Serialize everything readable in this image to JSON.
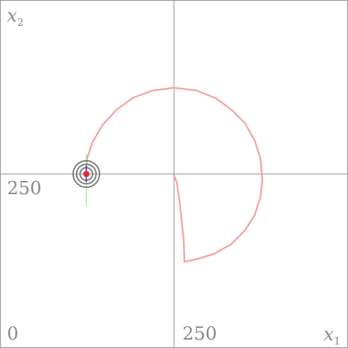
{
  "axes": {
    "x_label": "x",
    "x_label_sub": "1",
    "y_label": "x",
    "y_label_sub": "2",
    "x_origin_label": "0",
    "x_mid_label": "250",
    "y_mid_label": "250"
  },
  "colors": {
    "background": "#ffffff",
    "border": "#8a8a8a",
    "axis": "#8a8a8a",
    "trajectory": "#f2a7a7",
    "agent_body": "#e8263b",
    "agent_rings": "#7a7a7a",
    "agent_heading": "#2f2fbf",
    "velocity_vector": "#77e36a"
  },
  "icons": {
    "agent": "robot-position-icon",
    "trajectory": "path-trace-icon"
  },
  "scene": {
    "agent_position": [
      124,
      250
    ],
    "agent_heading": "vertical",
    "trajectory_points": [
      [
        250,
        252
      ],
      [
        254,
        262
      ],
      [
        258,
        289
      ],
      [
        261,
        318
      ],
      [
        264,
        345
      ],
      [
        265,
        376
      ],
      [
        280,
        373
      ],
      [
        307,
        365
      ],
      [
        332,
        351
      ],
      [
        352,
        331
      ],
      [
        366,
        309
      ],
      [
        374,
        284
      ],
      [
        377,
        258
      ],
      [
        374,
        227
      ],
      [
        366,
        202
      ],
      [
        352,
        177
      ],
      [
        333,
        158
      ],
      [
        310,
        141
      ],
      [
        282,
        130
      ],
      [
        250,
        126
      ],
      [
        220,
        130
      ],
      [
        192,
        140
      ],
      [
        167,
        158
      ],
      [
        147,
        180
      ],
      [
        133,
        204
      ],
      [
        125,
        228
      ],
      [
        124,
        244
      ]
    ]
  }
}
